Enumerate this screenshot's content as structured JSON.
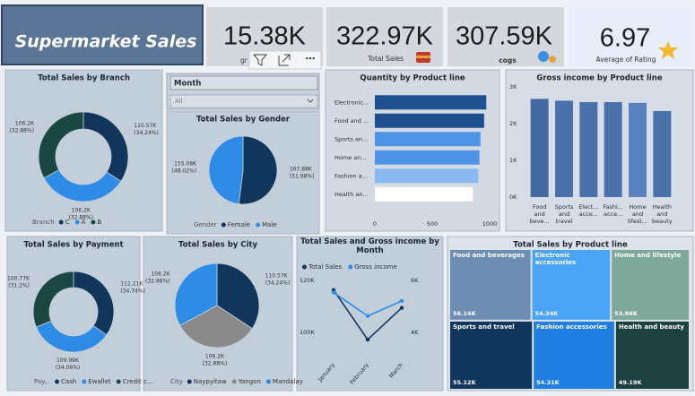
{
  "header": {
    "title": "Supermarket Sales"
  },
  "kpis": [
    {
      "value": "15.38K",
      "label": "gr"
    },
    {
      "value": "322.97K",
      "label": "Total Sales"
    },
    {
      "value": "307.59K",
      "label": "cogs"
    },
    {
      "value": "6.97",
      "label": "Average of Rating"
    }
  ],
  "slicer": {
    "title": "Month",
    "selected": "All"
  },
  "chart_data": [
    {
      "type": "donut",
      "title": "Total Sales by Branch",
      "legend_title": "Branch",
      "categories": [
        "C",
        "A",
        "B"
      ],
      "values": [
        110.57,
        106.2,
        106.2
      ],
      "value_labels": [
        "110.57K",
        "106.2K",
        "106.2K"
      ],
      "percent_labels": [
        "(34.24%)",
        "(32.88%)",
        "(32.88%)"
      ],
      "colors": [
        "#12355b",
        "#2f8ce6",
        "#1b4743"
      ]
    },
    {
      "type": "pie",
      "title": "Total Sales by Gender",
      "legend_title": "Gender",
      "categories": [
        "Female",
        "Male"
      ],
      "values": [
        167.88,
        155.08
      ],
      "value_labels": [
        "167.88K",
        "155.08K"
      ],
      "percent_labels": [
        "(51.98%)",
        "(48.02%)"
      ],
      "colors": [
        "#12355b",
        "#2f8ce6"
      ]
    },
    {
      "type": "hbar",
      "title": "Quantity by Product line",
      "categories": [
        "Electronic...",
        "Food and ...",
        "Sports an...",
        "Home an...",
        "Fashion a...",
        "Health an..."
      ],
      "values": [
        971,
        952,
        920,
        911,
        902,
        854
      ],
      "colors": [
        "#1e4f8f",
        "#1e4f8f",
        "#4f94e6",
        "#4f94e6",
        "#8ab8f0",
        "#ffffff"
      ],
      "xlim": [
        0,
        1000
      ],
      "xticks": [
        0,
        500,
        1000
      ]
    },
    {
      "type": "bar",
      "title": "Gross income by Product line",
      "categories": [
        "Food and beve...",
        "Sports and travel",
        "Elect... acce...",
        "Fashi... acce...",
        "Home and lifest...",
        "Health and beauty"
      ],
      "values": [
        2673.56,
        2624.9,
        2587.5,
        2586.0,
        2564.85,
        2342.56
      ],
      "colors": [
        "#4468a0",
        "#4b71aa",
        "#4b71aa",
        "#4b71aa",
        "#5a82c0",
        "#4b71aa"
      ],
      "ylim": [
        0,
        3200
      ],
      "yticks": [
        {
          "value": 0,
          "label": "0K"
        },
        {
          "value": 1000,
          "label": "1K"
        },
        {
          "value": 2000,
          "label": "2K"
        },
        {
          "value": 3000,
          "label": "3K"
        }
      ]
    },
    {
      "type": "donut",
      "title": "Total Sales by Payment",
      "legend_title": "Pay...",
      "categories": [
        "Cash",
        "Ewallet",
        "Credit c..."
      ],
      "values": [
        112.21,
        109.99,
        100.77
      ],
      "value_labels": [
        "112.21K",
        "109.99K",
        "100.77K"
      ],
      "percent_labels": [
        "(34.74%)",
        "(34.06%)",
        "(31.2%)"
      ],
      "colors": [
        "#12355b",
        "#2f8ce6",
        "#1b4743"
      ]
    },
    {
      "type": "pie",
      "title": "Total Sales by City",
      "legend_title": "City",
      "categories": [
        "Naypyitaw",
        "Yangon",
        "Mandalay"
      ],
      "values": [
        110.57,
        106.2,
        106.2
      ],
      "value_labels": [
        "110.57K",
        "106.2K",
        "106.2K"
      ],
      "percent_labels": [
        "(34.24%)",
        "(32.88%)",
        "(32.88%)"
      ],
      "colors": [
        "#12355b",
        "#8a8a8a",
        "#2f8ce6"
      ]
    },
    {
      "type": "line",
      "title": "Total Sales and Gross income by Month",
      "categories": [
        "January",
        "February",
        "March"
      ],
      "series": [
        {
          "name": "Total Sales",
          "color": "#12355b",
          "values": [
            116292.11,
            97219.58,
            109455.74
          ]
        },
        {
          "name": "Gross income",
          "color": "#2f8ce6",
          "axis": "y2",
          "values": [
            5537.71,
            4629.49,
            5212.17
          ]
        }
      ],
      "ylim": [
        90000,
        123000
      ],
      "yticks": [
        {
          "value": 100000,
          "label": "100K"
        },
        {
          "value": 120000,
          "label": "120K"
        }
      ],
      "y2lim": [
        3000,
        6300
      ],
      "y2ticks": [
        {
          "value": 4000,
          "label": "4K"
        },
        {
          "value": 6000,
          "label": "6K"
        }
      ]
    },
    {
      "type": "treemap",
      "title": "Total Sales by Product line",
      "categories": [
        "Food and beverages",
        "Electronic accessories",
        "Home and lifestyle",
        "Sports and travel",
        "Fashion accessories",
        "Health and beauty"
      ],
      "values": [
        56.14,
        54.34,
        53.86,
        55.12,
        54.31,
        49.19
      ],
      "value_labels": [
        "56.14K",
        "54.34K",
        "53.86K",
        "55.12K",
        "54.31K",
        "49.19K"
      ],
      "colors": [
        "#6d8db3",
        "#4aa3f5",
        "#7fa89a",
        "#12355b",
        "#1f7ee0",
        "#1d4040"
      ]
    }
  ]
}
